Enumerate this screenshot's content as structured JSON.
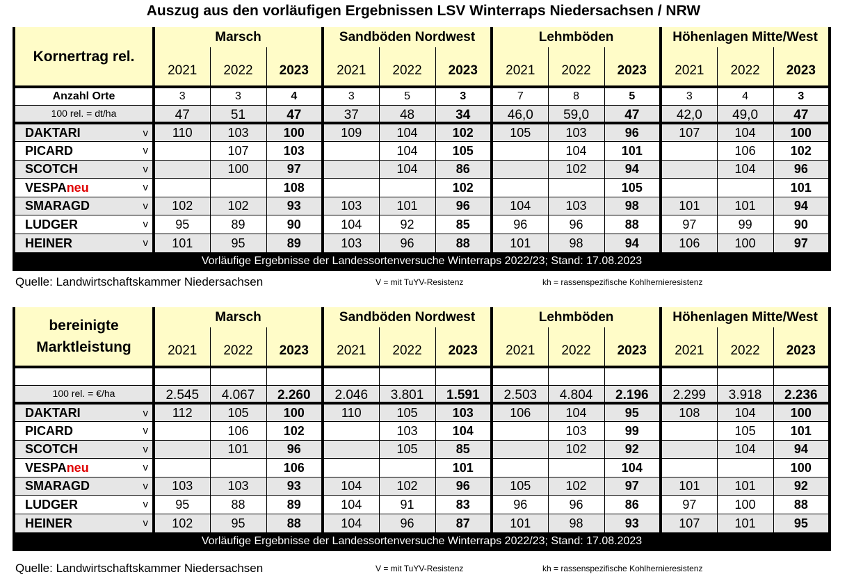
{
  "title": "Auszug aus den vorläufigen Ergebnissen LSV Winterraps Niedersachsen / NRW",
  "groups": [
    "Marsch",
    "Sandböden Nordwest",
    "Lehmböden",
    "Höhenlagen Mitte/West"
  ],
  "years": [
    "2021",
    "2022",
    "2023"
  ],
  "table1": {
    "header_label": "Kornertrag rel.",
    "orte_label": "Anzahl Orte",
    "orte": [
      "3",
      "3",
      "4",
      "3",
      "5",
      "3",
      "7",
      "8",
      "5",
      "3",
      "4",
      "3"
    ],
    "ref_label": "100 rel. = dt/ha",
    "ref": [
      "47",
      "51",
      "47",
      "37",
      "48",
      "34",
      "46,0",
      "59,0",
      "47",
      "42,0",
      "49,0",
      "47"
    ],
    "rows": [
      {
        "name": "DAKTARI",
        "suffix": "",
        "res": "v",
        "values": [
          "110",
          "103",
          "100",
          "109",
          "104",
          "102",
          "105",
          "103",
          "96",
          "107",
          "104",
          "100"
        ]
      },
      {
        "name": "PICARD",
        "suffix": "",
        "res": "v",
        "values": [
          "",
          "107",
          "103",
          "",
          "104",
          "105",
          "",
          "104",
          "101",
          "",
          "106",
          "102"
        ]
      },
      {
        "name": "SCOTCH",
        "suffix": "",
        "res": "v",
        "values": [
          "",
          "100",
          "97",
          "",
          "104",
          "86",
          "",
          "102",
          "94",
          "",
          "104",
          "96"
        ]
      },
      {
        "name": "VESPA",
        "suffix": "neu",
        "res": "v",
        "values": [
          "",
          "",
          "108",
          "",
          "",
          "102",
          "",
          "",
          "105",
          "",
          "",
          "101"
        ]
      },
      {
        "name": "SMARAGD",
        "suffix": "",
        "res": "v",
        "values": [
          "102",
          "102",
          "93",
          "103",
          "101",
          "96",
          "104",
          "103",
          "98",
          "101",
          "101",
          "94"
        ]
      },
      {
        "name": "LUDGER",
        "suffix": "",
        "res": "v",
        "values": [
          "95",
          "89",
          "90",
          "104",
          "92",
          "85",
          "96",
          "96",
          "88",
          "97",
          "99",
          "90"
        ]
      },
      {
        "name": "HEINER",
        "suffix": "",
        "res": "v",
        "values": [
          "101",
          "95",
          "89",
          "103",
          "96",
          "88",
          "101",
          "98",
          "94",
          "106",
          "100",
          "97"
        ]
      }
    ],
    "footer": "Vorläufige Ergebnisse der Landessortenversuche Winterraps 2022/23; Stand: 17.08.2023"
  },
  "table2": {
    "header_label": "bereinigte Marktleistung",
    "ref_label": "100 rel. = €/ha",
    "ref": [
      "2.545",
      "4.067",
      "2.260",
      "2.046",
      "3.801",
      "1.591",
      "2.503",
      "4.804",
      "2.196",
      "2.299",
      "3.918",
      "2.236"
    ],
    "rows": [
      {
        "name": "DAKTARI",
        "suffix": "",
        "res": "v",
        "values": [
          "112",
          "105",
          "100",
          "110",
          "105",
          "103",
          "106",
          "104",
          "95",
          "108",
          "104",
          "100"
        ]
      },
      {
        "name": "PICARD",
        "suffix": "",
        "res": "v",
        "values": [
          "",
          "106",
          "102",
          "",
          "103",
          "104",
          "",
          "103",
          "99",
          "",
          "105",
          "101"
        ]
      },
      {
        "name": "SCOTCH",
        "suffix": "",
        "res": "v",
        "values": [
          "",
          "101",
          "96",
          "",
          "105",
          "85",
          "",
          "102",
          "92",
          "",
          "104",
          "94"
        ]
      },
      {
        "name": "VESPA",
        "suffix": "neu",
        "res": "v",
        "values": [
          "",
          "",
          "106",
          "",
          "",
          "101",
          "",
          "",
          "104",
          "",
          "",
          "100"
        ]
      },
      {
        "name": "SMARAGD",
        "suffix": "",
        "res": "v",
        "values": [
          "103",
          "103",
          "93",
          "104",
          "102",
          "96",
          "105",
          "102",
          "97",
          "101",
          "101",
          "92"
        ]
      },
      {
        "name": "LUDGER",
        "suffix": "",
        "res": "v",
        "values": [
          "95",
          "88",
          "89",
          "104",
          "91",
          "83",
          "96",
          "96",
          "86",
          "97",
          "100",
          "88"
        ]
      },
      {
        "name": "HEINER",
        "suffix": "",
        "res": "v",
        "values": [
          "102",
          "95",
          "88",
          "104",
          "96",
          "87",
          "101",
          "98",
          "93",
          "107",
          "101",
          "95"
        ]
      }
    ],
    "footer": "Vorläufige Ergebnisse der Landessortenversuche Winterraps 2022/23; Stand: 17.08.2023"
  },
  "source": "Quelle: Landwirtschaftskammer Niedersachsen",
  "note_v": "V = mit TuYV-Resistenz",
  "note_kh": "kh = rassenspezifische Kohlhernieresistenz"
}
